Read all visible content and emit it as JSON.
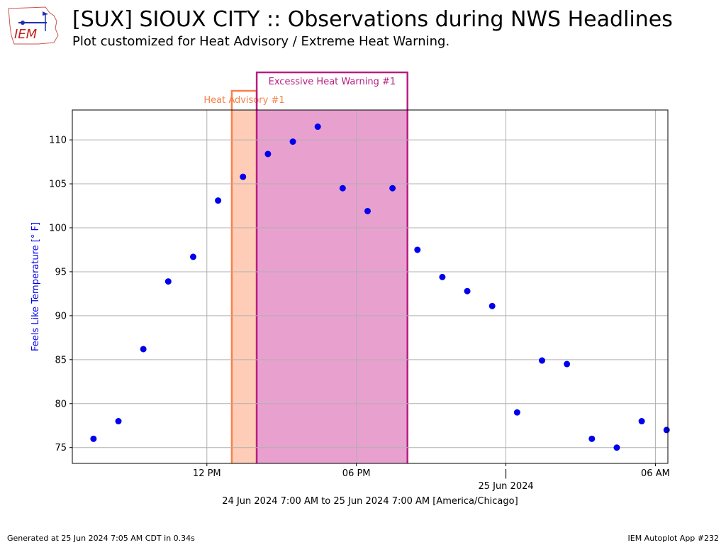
{
  "header": {
    "title": "[SUX] SIOUX CITY :: Observations during NWS Headlines",
    "subtitle": "Plot customized for Heat Advisory / Extreme Heat Warning.",
    "logo_text": "IEM"
  },
  "footer": {
    "generated": "Generated at 25 Jun 2024 7:05 AM CDT in 0.34s",
    "app": "IEM Autoplot App #232"
  },
  "chart_data": {
    "type": "scatter",
    "xlabel": "24 Jun 2024 7:00 AM to 25 Jun 2024 7:00 AM [America/Chicago]",
    "ylabel": "Feels Like Temperature [° F]",
    "x_unit": "hour (local time, 24 Jun 2024)",
    "xlim": [
      6.6,
      30.5
    ],
    "ylim": [
      73.2,
      113.4
    ],
    "x_ticks": [
      {
        "x": 12,
        "label": "12 PM"
      },
      {
        "x": 18,
        "label": "06 PM"
      },
      {
        "x": 24,
        "label": "|\n25 Jun 2024"
      },
      {
        "x": 30,
        "label": "06 AM"
      }
    ],
    "y_ticks": [
      75,
      80,
      85,
      90,
      95,
      100,
      105,
      110
    ],
    "grid": true,
    "series": [
      {
        "color": "#0000ee",
        "x": [
          7.45,
          8.45,
          9.45,
          10.45,
          11.45,
          12.45,
          13.45,
          14.45,
          15.45,
          16.45,
          17.45,
          18.45,
          19.45,
          20.45,
          21.45,
          22.45,
          23.45,
          24.45,
          25.45,
          26.45,
          27.45,
          28.45,
          29.45,
          30.45
        ],
        "y": [
          76.0,
          78.0,
          86.2,
          93.9,
          96.7,
          103.1,
          105.8,
          108.4,
          109.8,
          111.5,
          104.5,
          101.9,
          104.5,
          97.5,
          94.4,
          92.8,
          91.1,
          79.0,
          84.9,
          84.5,
          76.0,
          75.0,
          78.0,
          77.0
        ]
      }
    ],
    "headlines": [
      {
        "label": "Heat Advisory #1",
        "start": 13.0,
        "end": 14.0,
        "fill": "#ffcdb7",
        "edge": "#f7804b"
      },
      {
        "label": "Excessive Heat Warning #1",
        "start": 14.0,
        "end": 20.05,
        "fill": "#e8a0cf",
        "edge": "#b81e84"
      }
    ]
  }
}
